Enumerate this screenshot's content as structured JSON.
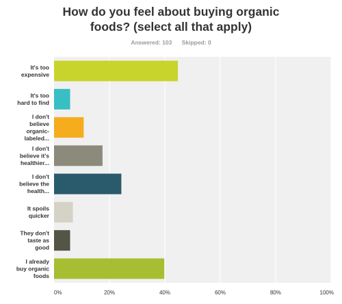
{
  "header": {
    "title_line1": "How do you feel about buying organic",
    "title_line2": "foods? (select all that apply)",
    "answered_label": "Answered: 103",
    "skipped_label": "Skipped: 0"
  },
  "colors": {
    "plot_background": "#f0f0f0",
    "gridline": "#ffffff",
    "bars": [
      "#c8d42c",
      "#37bfc4",
      "#f5ad1d",
      "#8b8a7b",
      "#2a5b6c",
      "#d5d3c6",
      "#555546",
      "#a8be32"
    ]
  },
  "chart_data": {
    "type": "bar",
    "orientation": "horizontal",
    "title": "How do you feel about buying organic foods? (select all that apply)",
    "xlabel": "",
    "ylabel": "",
    "xlim": [
      0,
      100
    ],
    "x_unit": "%",
    "grid": true,
    "categories": [
      [
        "It's too",
        "expensive"
      ],
      [
        "It's too",
        "hard to find"
      ],
      [
        "I don't",
        "believe",
        "organic-",
        "labeled..."
      ],
      [
        "I don't",
        "believe it's",
        "healthier..."
      ],
      [
        "I don't",
        "believe the",
        "health..."
      ],
      [
        "It spoils",
        "quicker"
      ],
      [
        "They don't",
        "taste as",
        "good"
      ],
      [
        "I already",
        "buy organic",
        "foods"
      ]
    ],
    "values": [
      44.7,
      5.8,
      10.7,
      17.5,
      24.3,
      6.8,
      5.8,
      39.8
    ],
    "ticks": [
      "0%",
      "20%",
      "40%",
      "60%",
      "80%",
      "100%"
    ]
  }
}
